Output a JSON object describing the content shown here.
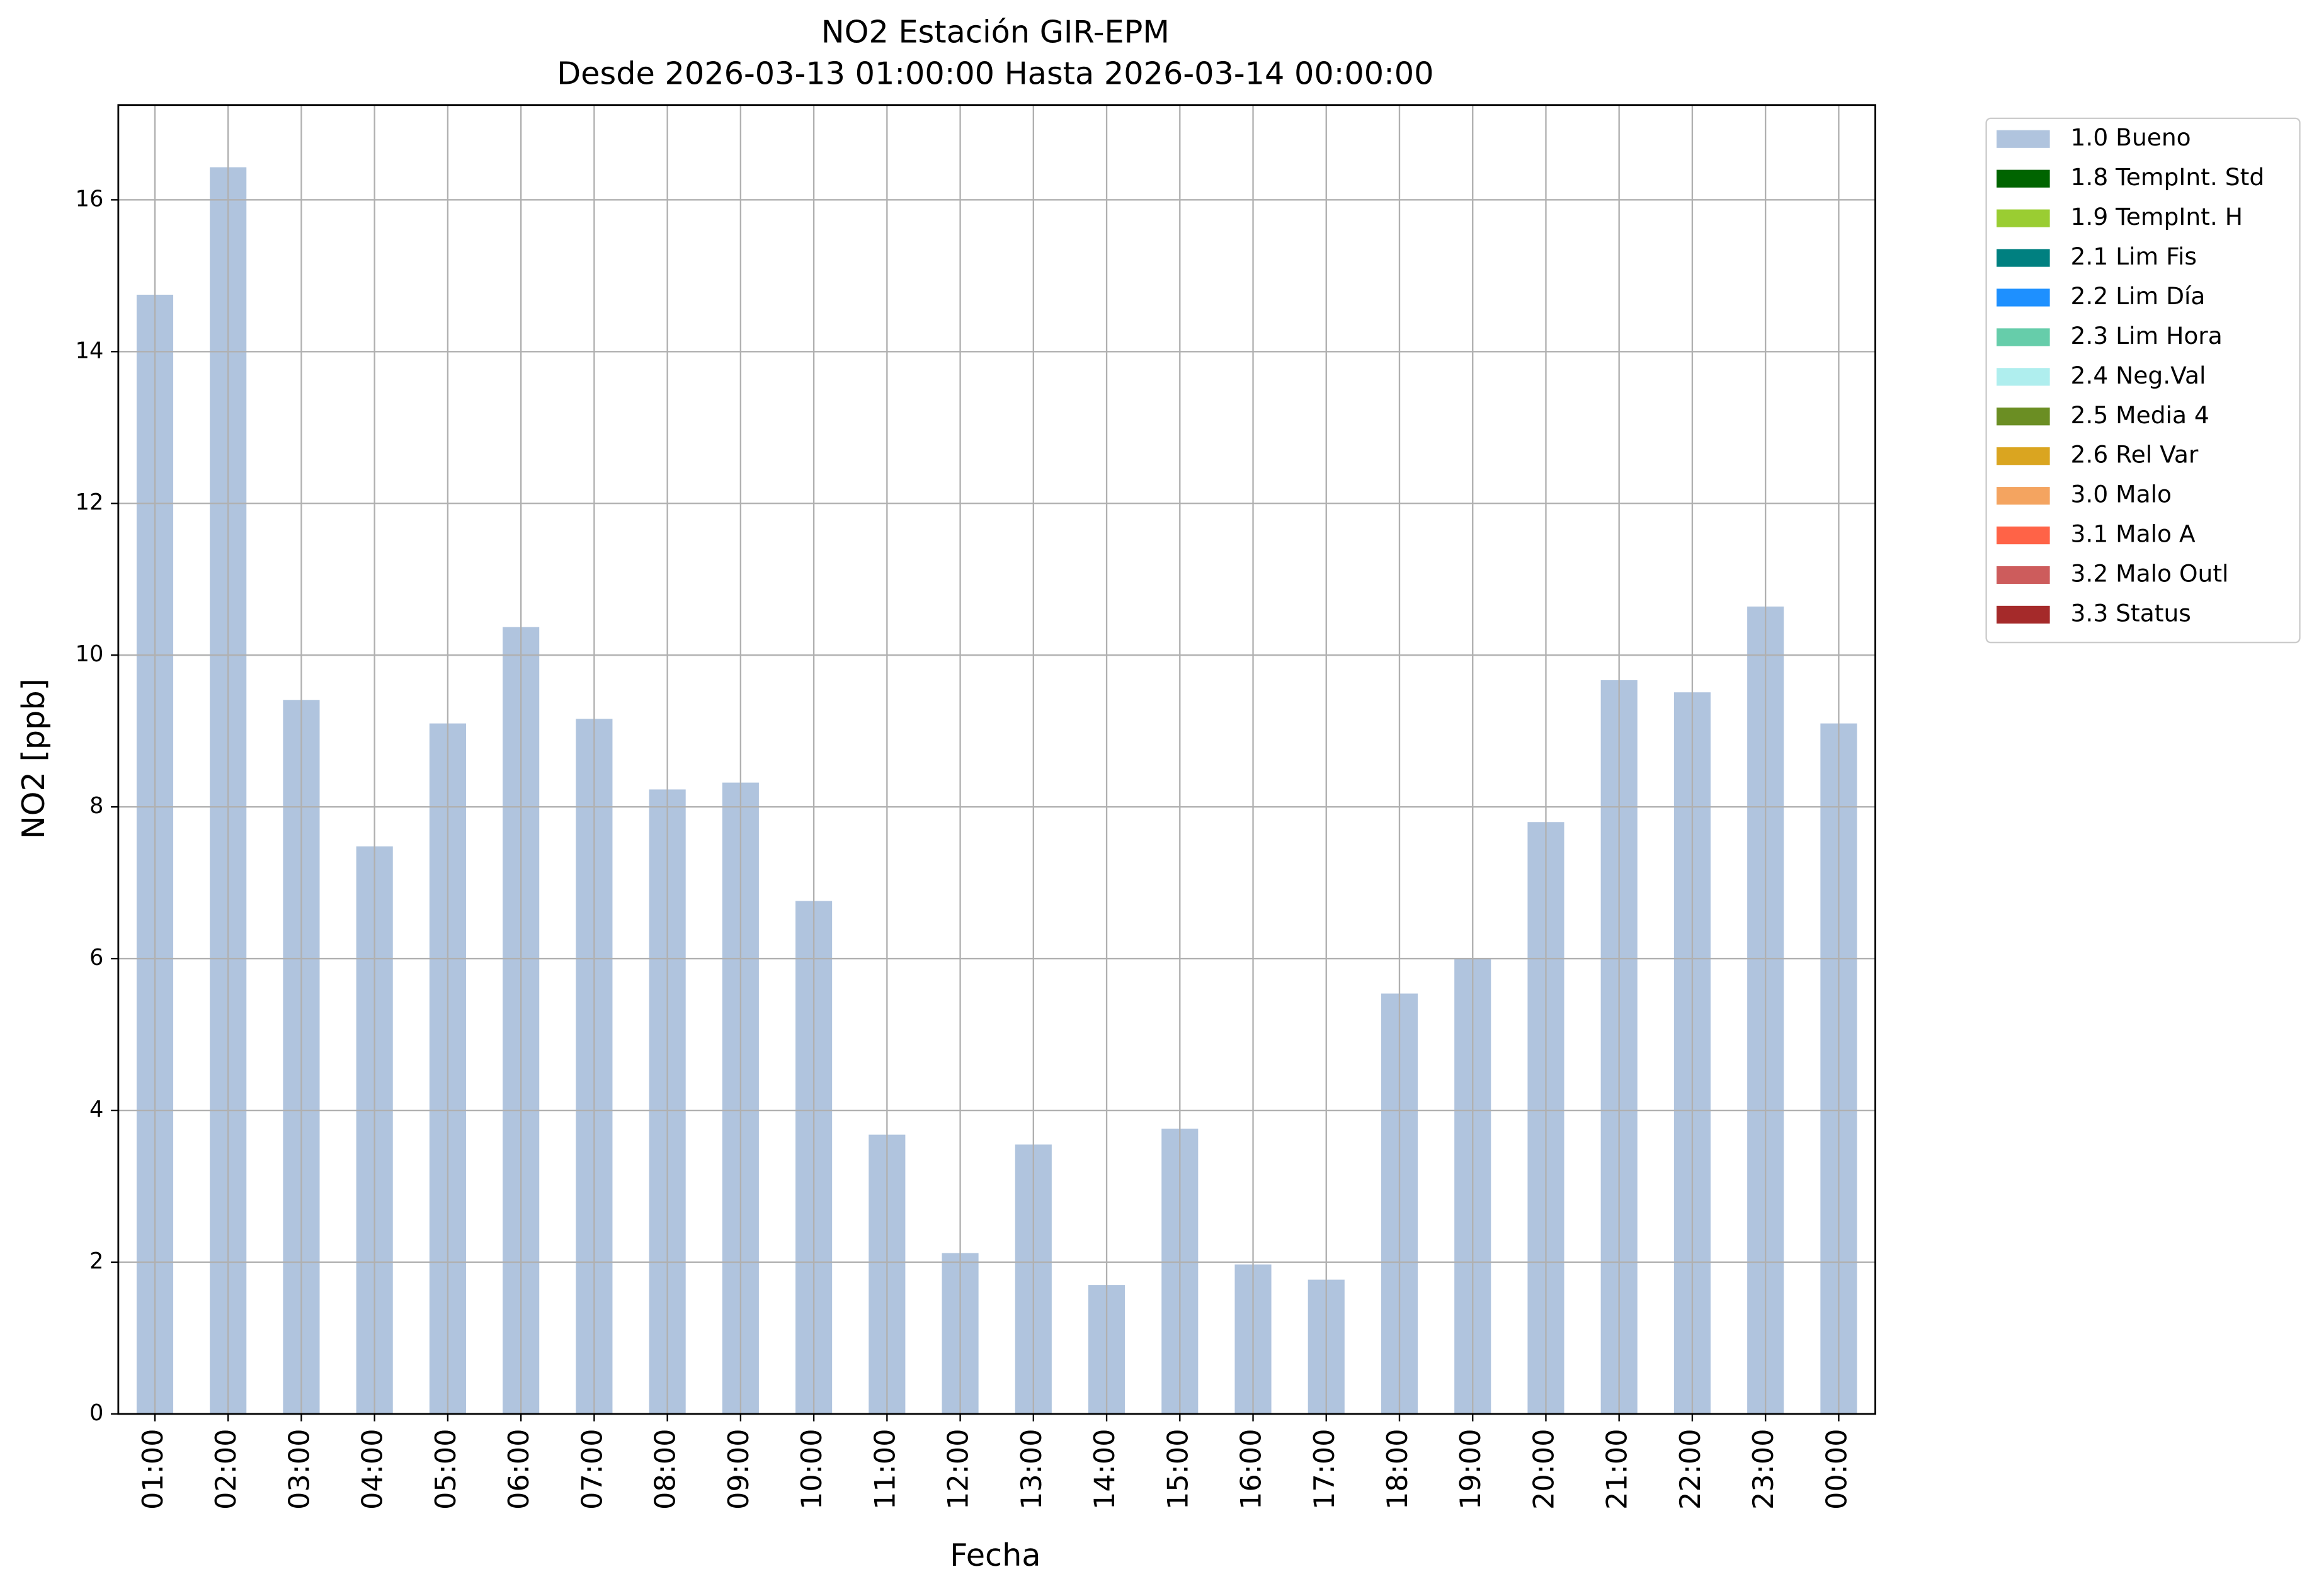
{
  "chart_data": {
    "type": "bar",
    "stacked": true,
    "title": "NO2 Estación GIR-EPM",
    "subtitle": "Desde 2026-03-13 01:00:00 Hasta 2026-03-14 00:00:00",
    "xlabel": "Fecha",
    "ylabel": "NO2 [ppb]",
    "categories": [
      "01:00",
      "02:00",
      "03:00",
      "04:00",
      "05:00",
      "06:00",
      "07:00",
      "08:00",
      "09:00",
      "10:00",
      "11:00",
      "12:00",
      "13:00",
      "14:00",
      "15:00",
      "16:00",
      "17:00",
      "18:00",
      "19:00",
      "20:00",
      "21:00",
      "22:00",
      "23:00",
      "00:00"
    ],
    "series": [
      {
        "name": "1.0 Bueno",
        "color": "#b0c4de",
        "values": [
          14.75,
          16.43,
          9.41,
          7.48,
          9.1,
          10.37,
          9.16,
          8.23,
          8.32,
          6.76,
          3.68,
          2.12,
          3.55,
          1.7,
          3.76,
          1.97,
          1.77,
          5.54,
          6.0,
          7.8,
          9.67,
          9.51,
          10.64,
          9.1
        ]
      },
      {
        "name": "1.8 TempInt. Std",
        "color": "#006400",
        "values": [
          0,
          0,
          0,
          0,
          0,
          0,
          0,
          0,
          0,
          0,
          0,
          0,
          0,
          0,
          0,
          0,
          0,
          0,
          0,
          0,
          0,
          0,
          0,
          0
        ]
      },
      {
        "name": "1.9 TempInt. H",
        "color": "#9acd32",
        "values": [
          0,
          0,
          0,
          0,
          0,
          0,
          0,
          0,
          0,
          0,
          0,
          0,
          0,
          0,
          0,
          0,
          0,
          0,
          0,
          0,
          0,
          0,
          0,
          0
        ]
      },
      {
        "name": "2.1 Lim Fis",
        "color": "#008080",
        "values": [
          0,
          0,
          0,
          0,
          0,
          0,
          0,
          0,
          0,
          0,
          0,
          0,
          0,
          0,
          0,
          0,
          0,
          0,
          0,
          0,
          0,
          0,
          0,
          0
        ]
      },
      {
        "name": "2.2 Lim Día",
        "color": "#1e90ff",
        "values": [
          0,
          0,
          0,
          0,
          0,
          0,
          0,
          0,
          0,
          0,
          0,
          0,
          0,
          0,
          0,
          0,
          0,
          0,
          0,
          0,
          0,
          0,
          0,
          0
        ]
      },
      {
        "name": "2.3 Lim Hora",
        "color": "#66cdaa",
        "values": [
          0,
          0,
          0,
          0,
          0,
          0,
          0,
          0,
          0,
          0,
          0,
          0,
          0,
          0,
          0,
          0,
          0,
          0,
          0,
          0,
          0,
          0,
          0,
          0
        ]
      },
      {
        "name": "2.4 Neg.Val",
        "color": "#afeeee",
        "values": [
          0,
          0,
          0,
          0,
          0,
          0,
          0,
          0,
          0,
          0,
          0,
          0,
          0,
          0,
          0,
          0,
          0,
          0,
          0,
          0,
          0,
          0,
          0,
          0
        ]
      },
      {
        "name": "2.5 Media 4",
        "color": "#6b8e23",
        "values": [
          0,
          0,
          0,
          0,
          0,
          0,
          0,
          0,
          0,
          0,
          0,
          0,
          0,
          0,
          0,
          0,
          0,
          0,
          0,
          0,
          0,
          0,
          0,
          0
        ]
      },
      {
        "name": "2.6 Rel Var",
        "color": "#daa520",
        "values": [
          0,
          0,
          0,
          0,
          0,
          0,
          0,
          0,
          0,
          0,
          0,
          0,
          0,
          0,
          0,
          0,
          0,
          0,
          0,
          0,
          0,
          0,
          0,
          0
        ]
      },
      {
        "name": "3.0 Malo",
        "color": "#f4a460",
        "values": [
          0,
          0,
          0,
          0,
          0,
          0,
          0,
          0,
          0,
          0,
          0,
          0,
          0,
          0,
          0,
          0,
          0,
          0,
          0,
          0,
          0,
          0,
          0,
          0
        ]
      },
      {
        "name": "3.1 Malo A",
        "color": "#ff6347",
        "values": [
          0,
          0,
          0,
          0,
          0,
          0,
          0,
          0,
          0,
          0,
          0,
          0,
          0,
          0,
          0,
          0,
          0,
          0,
          0,
          0,
          0,
          0,
          0,
          0
        ]
      },
      {
        "name": "3.2 Malo Outl",
        "color": "#cd5c5c",
        "values": [
          0,
          0,
          0,
          0,
          0,
          0,
          0,
          0,
          0,
          0,
          0,
          0,
          0,
          0,
          0,
          0,
          0,
          0,
          0,
          0,
          0,
          0,
          0,
          0
        ]
      },
      {
        "name": "3.3 Status",
        "color": "#a52a2a",
        "values": [
          0,
          0,
          0,
          0,
          0,
          0,
          0,
          0,
          0,
          0,
          0,
          0,
          0,
          0,
          0,
          0,
          0,
          0,
          0,
          0,
          0,
          0,
          0,
          0
        ]
      }
    ],
    "ylim": [
      0,
      17.25
    ],
    "yticks": [
      0,
      2,
      4,
      6,
      8,
      10,
      12,
      14,
      16
    ],
    "grid": true,
    "legend": "outside-right"
  }
}
